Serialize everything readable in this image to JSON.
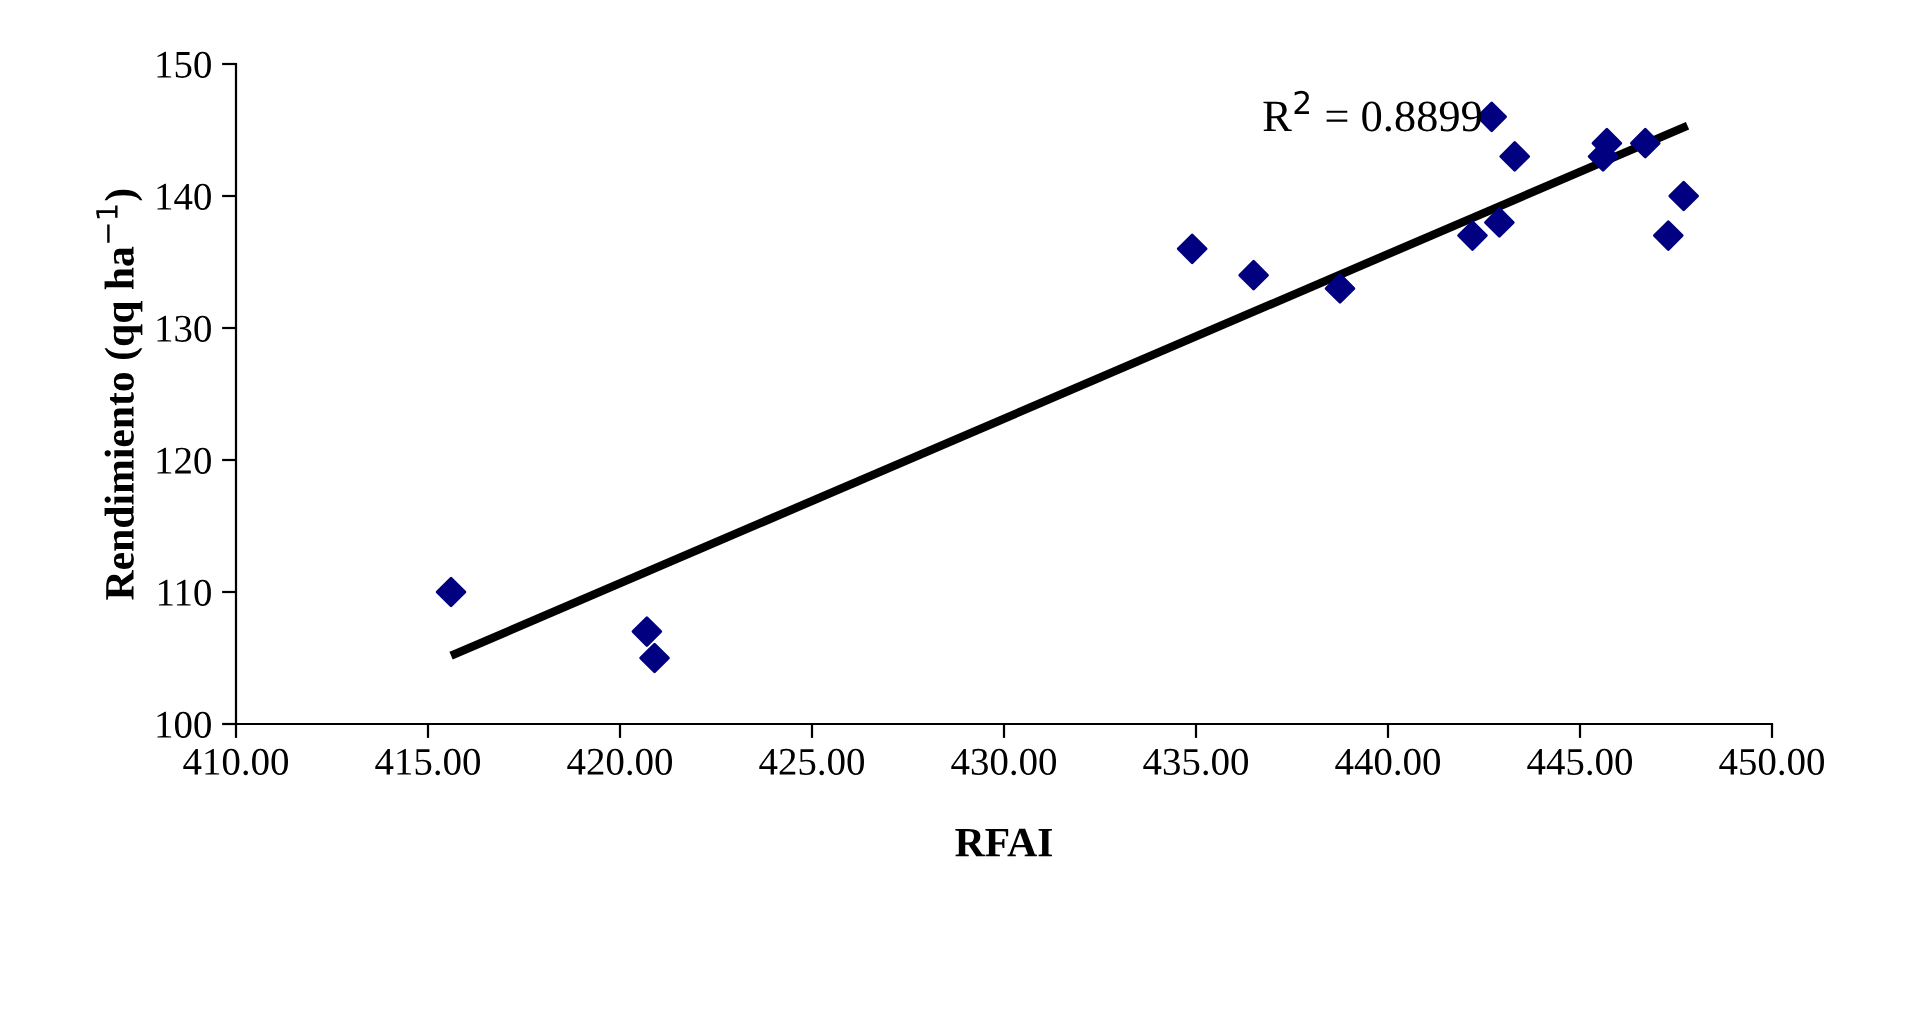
{
  "chart_data": {
    "type": "scatter",
    "xlabel": "RFAI",
    "ylabel": "Rendimiento (qq ha$^{−1}$)",
    "series": [
      {
        "color": "#000080",
        "marker": "diamond",
        "x": [
          415.6,
          420.7,
          420.9,
          434.9,
          436.5,
          438.75,
          442.2,
          442.7,
          442.9,
          443.3,
          445.6,
          445.7,
          446.7,
          447.3,
          447.7
        ],
        "values": [
          110,
          107,
          105,
          136,
          134,
          133,
          137,
          146,
          138,
          143,
          143,
          144,
          144,
          137,
          140
        ]
      },
      {
        "type": "line",
        "color": "#000000",
        "x": [
          415.7,
          447.7
        ],
        "values": [
          105.3,
          145.2
        ]
      }
    ],
    "annotations": [
      "R$^{2}$ = 0.8899"
    ],
    "xlim": [
      410,
      450
    ],
    "ylim": [
      100,
      150
    ],
    "xticks": [
      {
        "value": 410,
        "label": "410.00"
      },
      {
        "value": 415,
        "label": "415.00"
      },
      {
        "value": 420,
        "label": "420.00"
      },
      {
        "value": 425,
        "label": "425.00"
      },
      {
        "value": 430,
        "label": "430.00"
      },
      {
        "value": 435,
        "label": "435.00"
      },
      {
        "value": 440,
        "label": "440.00"
      },
      {
        "value": 445,
        "label": "445.00"
      },
      {
        "value": 450,
        "label": "450.00"
      }
    ],
    "yticks": [
      100,
      110,
      120,
      130,
      140,
      150
    ],
    "grid": false,
    "legend": false
  }
}
